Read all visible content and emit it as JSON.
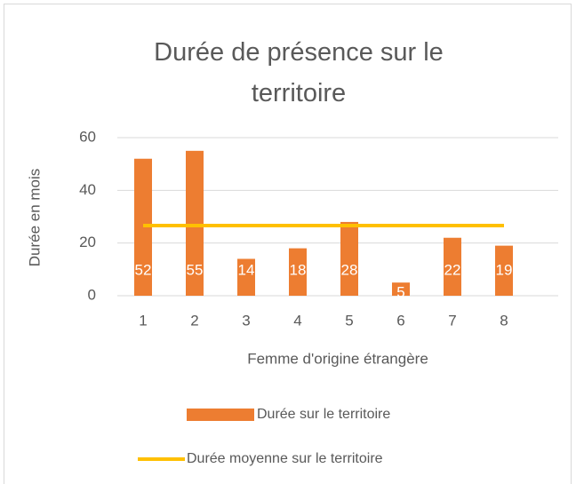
{
  "chart_data": {
    "type": "bar",
    "title": "Durée de présence sur le territoire",
    "x_label": "Femme d'origine étrangère",
    "y_label": "Durée en mois",
    "categories": [
      "1",
      "2",
      "3",
      "4",
      "5",
      "6",
      "7",
      "8"
    ],
    "series": [
      {
        "name": "Durée sur le territoire",
        "type": "bar",
        "color": "#ed7d31",
        "values": [
          52,
          55,
          14,
          18,
          28,
          5,
          22,
          19
        ],
        "data_labels": true
      },
      {
        "name": "Durée moyenne sur le territoire",
        "type": "line",
        "color": "#ffc000",
        "values": [
          26.625,
          26.625,
          26.625,
          26.625,
          26.625,
          26.625,
          26.625,
          26.625
        ]
      }
    ],
    "ylim": [
      0,
      60
    ],
    "yticks": [
      0,
      20,
      40,
      60
    ],
    "grid": true,
    "legend": "bottom"
  }
}
